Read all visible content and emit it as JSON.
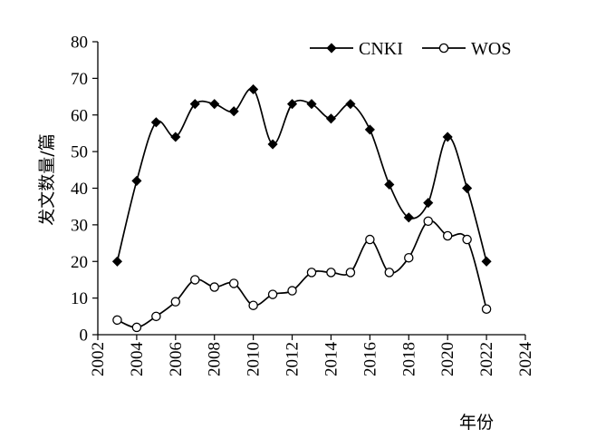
{
  "chart_data": {
    "type": "line",
    "xlabel": "年份",
    "ylabel": "发文数量/篇",
    "xlim": [
      2002,
      2024
    ],
    "ylim": [
      0,
      80
    ],
    "xticks": [
      "2002",
      "2004",
      "2006",
      "2008",
      "2010",
      "2012",
      "2014",
      "2016",
      "2018",
      "2020",
      "2022",
      "2024"
    ],
    "yticks": [
      "0",
      "10",
      "20",
      "30",
      "40",
      "50",
      "60",
      "70",
      "80"
    ],
    "grid": false,
    "legend_position": "top-right",
    "series": [
      {
        "name": "CNKI",
        "marker": "diamond-filled",
        "x": [
          2003,
          2004,
          2005,
          2006,
          2007,
          2008,
          2009,
          2010,
          2011,
          2012,
          2013,
          2014,
          2015,
          2016,
          2017,
          2018,
          2019,
          2020,
          2021,
          2022
        ],
        "y": [
          20,
          42,
          58,
          54,
          63,
          63,
          61,
          67,
          52,
          63,
          63,
          59,
          63,
          56,
          41,
          32,
          36,
          54,
          40,
          20
        ]
      },
      {
        "name": "WOS",
        "marker": "circle-open",
        "x": [
          2003,
          2004,
          2005,
          2006,
          2007,
          2008,
          2009,
          2010,
          2011,
          2012,
          2013,
          2014,
          2015,
          2016,
          2017,
          2018,
          2019,
          2020,
          2021,
          2022
        ],
        "y": [
          4,
          2,
          5,
          9,
          15,
          13,
          14,
          8,
          11,
          12,
          17,
          17,
          17,
          26,
          17,
          21,
          31,
          27,
          26,
          7
        ]
      }
    ]
  }
}
